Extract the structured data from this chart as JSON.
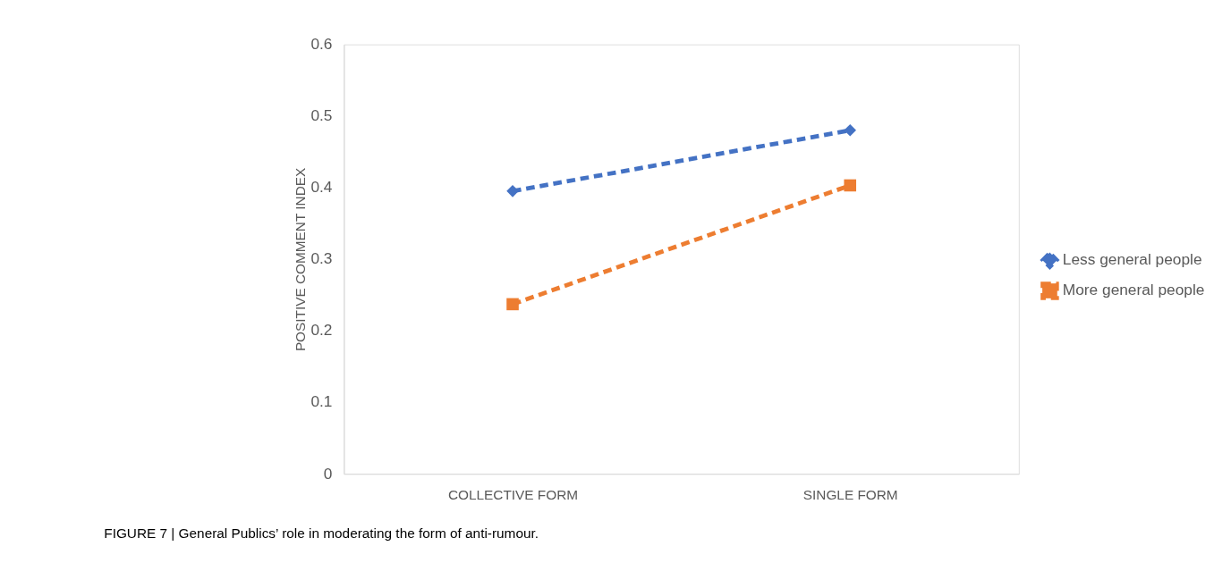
{
  "chart_data": {
    "type": "line",
    "ylabel": "POSITIVE COMMENT INDEX",
    "categories": [
      "COLLECTIVE FORM",
      "SINGLE FORM"
    ],
    "series": [
      {
        "name": "Less general people",
        "color": "#4472c4",
        "values": [
          0.395,
          0.48
        ],
        "marker": "diamond"
      },
      {
        "name": "More general people",
        "color": "#ed7d31",
        "values": [
          0.237,
          0.403
        ],
        "marker": "square"
      }
    ],
    "ylim": [
      0,
      0.6
    ],
    "yticks": [
      0,
      0.1,
      0.2,
      0.3,
      0.4,
      0.5,
      0.6
    ],
    "grid": false,
    "legend": "right",
    "line_style": "dashed",
    "annotations": [
      "FIGURE 7 | General Publics’ role in moderating the form of anti-rumour."
    ]
  }
}
